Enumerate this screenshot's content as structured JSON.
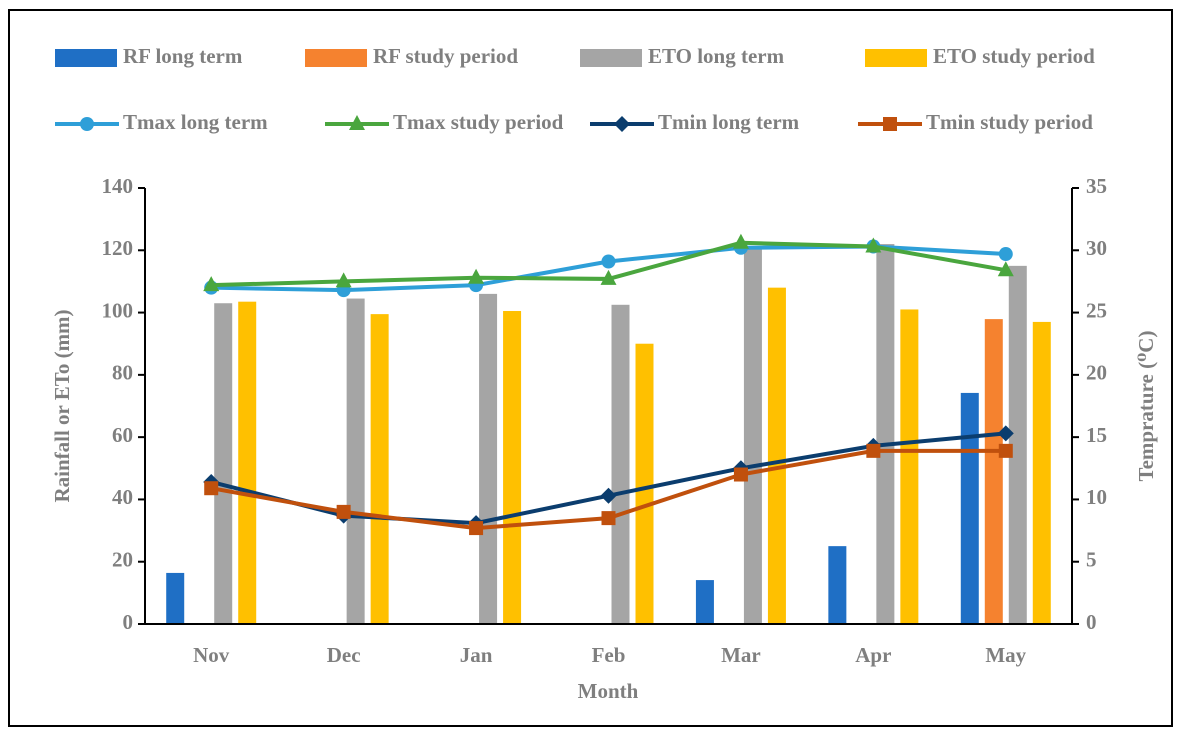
{
  "chart_data": {
    "type": "bar_line",
    "x_label": "Month",
    "y_label": "Rainfall or ETo (mm)",
    "y2_label": "Temprature (⁰C)",
    "categories": [
      "Nov",
      "Dec",
      "Jan",
      "Feb",
      "Mar",
      "Apr",
      "May"
    ],
    "ylim": [
      0,
      140
    ],
    "yticks": [
      0,
      20,
      40,
      60,
      80,
      100,
      120,
      140
    ],
    "y2lim": [
      0,
      35
    ],
    "y2ticks": [
      0,
      5,
      10,
      15,
      20,
      25,
      30,
      35
    ],
    "series": [
      {
        "name": "RF long term",
        "type": "bar",
        "color": "#1f6fc5",
        "values": [
          16.4,
          0,
          0,
          0,
          14.1,
          25,
          74.2
        ]
      },
      {
        "name": "RF study period",
        "type": "bar",
        "color": "#f5822f",
        "values": [
          0,
          0,
          0,
          0,
          0,
          0,
          97.9
        ]
      },
      {
        "name": "ETO long term",
        "type": "bar",
        "color": "#a5a5a5",
        "values": [
          103,
          104.5,
          106,
          102.5,
          121,
          122,
          115
        ]
      },
      {
        "name": "ETO study period",
        "type": "bar",
        "color": "#ffc000",
        "values": [
          103.5,
          99.5,
          100.5,
          90,
          108,
          101,
          97
        ]
      },
      {
        "name": "Tmax long term",
        "type": "line",
        "marker": "circle",
        "axis": "y2",
        "color": "#2e9fd8",
        "values": [
          27.0,
          26.8,
          27.2,
          29.1,
          30.2,
          30.3,
          29.7
        ]
      },
      {
        "name": "Tmax study period",
        "type": "line",
        "marker": "triangle",
        "axis": "y2",
        "color": "#4aa63e",
        "values": [
          27.2,
          27.5,
          27.8,
          27.7,
          30.6,
          30.3,
          28.4
        ]
      },
      {
        "name": "Tmin long term",
        "type": "line",
        "marker": "diamond",
        "axis": "y2",
        "color": "#0b3d6e",
        "values": [
          11.4,
          8.7,
          8.1,
          10.3,
          12.5,
          14.3,
          15.3
        ]
      },
      {
        "name": "Tmin study period",
        "type": "line",
        "marker": "square",
        "axis": "y2",
        "color": "#c0500d",
        "values": [
          10.9,
          9.0,
          7.7,
          8.5,
          12.0,
          13.9,
          13.9
        ]
      }
    ]
  }
}
